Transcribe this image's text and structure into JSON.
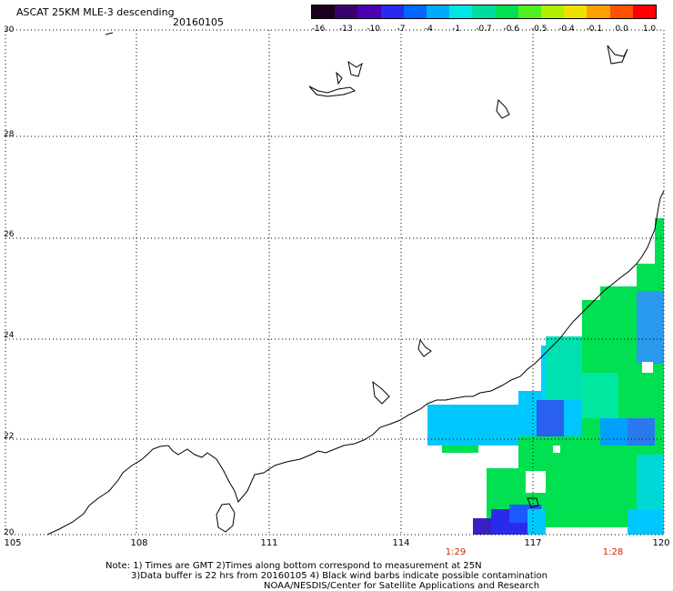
{
  "header": {
    "title": "ASCAT 25KM MLE-3 descending",
    "date": "20160105"
  },
  "colorbar": {
    "labels": [
      "-16",
      "-13",
      "-10",
      "-7",
      "-4",
      "-1",
      "-0.7",
      "-0.6",
      "-0.5",
      "-0.4",
      "-0.1",
      "0.0",
      "1.0"
    ],
    "colors": [
      "#1a001a",
      "#3a0070",
      "#4b00b4",
      "#2a2aee",
      "#0066ff",
      "#00aaff",
      "#00e5e5",
      "#00dca0",
      "#00e050",
      "#50f020",
      "#b0f000",
      "#f0e000",
      "#ffa000",
      "#ff5000",
      "#ff0000"
    ]
  },
  "axes": {
    "lat_labels": [
      "30",
      "28",
      "26",
      "24",
      "22",
      "20"
    ],
    "lon_labels": [
      "105",
      "108",
      "111",
      "114",
      "117",
      "120"
    ]
  },
  "times": [
    "1:29",
    "1:28"
  ],
  "notes": {
    "line1": "Note: 1) Times are GMT 2)Times along bottom correspond to measurement at 25N",
    "line2": "3)Data buffer is 22 hrs from 20160105 4) Black wind barbs indicate possible contamination",
    "line3": "NOAA/NESDIS/Center for Satellite Applications and Research"
  }
}
